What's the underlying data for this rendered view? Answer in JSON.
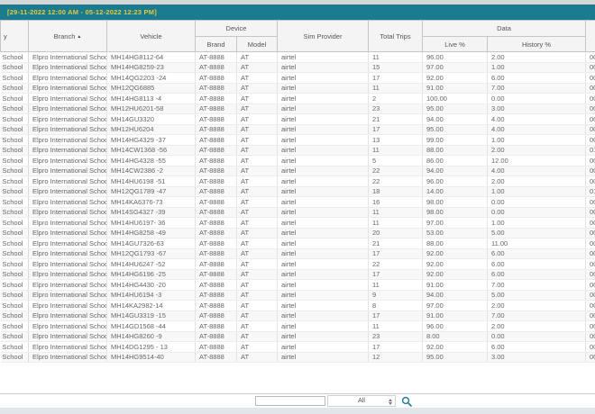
{
  "top_bar": {
    "date_range": "[29-11-2022 12:00 AM - 05-12-2022 12:23 PM]"
  },
  "colors": {
    "accent_teal": "#1b7b8e",
    "date_text": "#e5c83e"
  },
  "table": {
    "group_headers": {
      "device": "Device",
      "data": "Data"
    },
    "headers": {
      "left_cut": "y",
      "branch": "Branch",
      "vehicle": "Vehicle",
      "brand": "Brand",
      "model": "Model",
      "sim": "Sim Provider",
      "trips": "Total Trips",
      "live": "Live %",
      "history": "History %",
      "right_cut": ""
    },
    "sort_icon": "▲",
    "row_fields": [
      "left",
      "branch",
      "vehicle",
      "brand",
      "model",
      "sim",
      "trips",
      "live",
      "history",
      "right"
    ],
    "rows": [
      {
        "left": "School",
        "branch": "Elpro International School",
        "vehicle": "MH14HG8112-64",
        "brand": "AT-8888",
        "model": "AT",
        "sim": "airtel",
        "trips": "11",
        "live": "96.00",
        "history": "2.00",
        "right": "00:"
      },
      {
        "left": "School",
        "branch": "Elpro International School",
        "vehicle": "MH14HG8259-23",
        "brand": "AT-8888",
        "model": "AT",
        "sim": "airtel",
        "trips": "15",
        "live": "97.00",
        "history": "1.00",
        "right": "00:"
      },
      {
        "left": "School",
        "branch": "Elpro International School",
        "vehicle": "MH14QG2203 -24",
        "brand": "AT-8888",
        "model": "AT",
        "sim": "airtel",
        "trips": "17",
        "live": "92.00",
        "history": "6.00",
        "right": "00:"
      },
      {
        "left": "School",
        "branch": "Elpro International School",
        "vehicle": "MH12QG6885",
        "brand": "AT-8888",
        "model": "AT",
        "sim": "airtel",
        "trips": "11",
        "live": "91.00",
        "history": "7.00",
        "right": "00:"
      },
      {
        "left": "School",
        "branch": "Elpro International School",
        "vehicle": "MH14HG8113 -4",
        "brand": "AT-8888",
        "model": "AT",
        "sim": "airtel",
        "trips": "2",
        "live": "100.00",
        "history": "0.00",
        "right": "00:"
      },
      {
        "left": "School",
        "branch": "Elpro International School",
        "vehicle": "MH12HU6201-58",
        "brand": "AT-8888",
        "model": "AT",
        "sim": "airtel",
        "trips": "23",
        "live": "95.00",
        "history": "3.00",
        "right": "00:"
      },
      {
        "left": "School",
        "branch": "Elpro International School",
        "vehicle": "MH14GU3320",
        "brand": "AT-8888",
        "model": "AT",
        "sim": "airtel",
        "trips": "21",
        "live": "94.00",
        "history": "4.00",
        "right": "00:"
      },
      {
        "left": "School",
        "branch": "Elpro International School",
        "vehicle": "MH12HU6204",
        "brand": "AT-8888",
        "model": "AT",
        "sim": "airtel",
        "trips": "17",
        "live": "95.00",
        "history": "4.00",
        "right": "00:"
      },
      {
        "left": "School",
        "branch": "Elpro International School",
        "vehicle": "MH14HG4329 -37",
        "brand": "AT-8888",
        "model": "AT",
        "sim": "airtel",
        "trips": "13",
        "live": "99.00",
        "history": "1.00",
        "right": "00:"
      },
      {
        "left": "School",
        "branch": "Elpro International School",
        "vehicle": "MH14CW1368 -56",
        "brand": "AT-8888",
        "model": "AT",
        "sim": "airtel",
        "trips": "11",
        "live": "88.00",
        "history": "2.00",
        "right": "01:"
      },
      {
        "left": "School",
        "branch": "Elpro International School",
        "vehicle": "MH14HG4328 -55",
        "brand": "AT-8888",
        "model": "AT",
        "sim": "airtel",
        "trips": "5",
        "live": "86.00",
        "history": "12.00",
        "right": "00:"
      },
      {
        "left": "School",
        "branch": "Elpro International School",
        "vehicle": "MH14CW2386 -2",
        "brand": "AT-8888",
        "model": "AT",
        "sim": "airtel",
        "trips": "22",
        "live": "94.00",
        "history": "4.00",
        "right": "00:"
      },
      {
        "left": "School",
        "branch": "Elpro International School",
        "vehicle": "MH14HU6198 -51",
        "brand": "AT-8888",
        "model": "AT",
        "sim": "airtel",
        "trips": "22",
        "live": "96.00",
        "history": "2.00",
        "right": "00:"
      },
      {
        "left": "School",
        "branch": "Elpro International School",
        "vehicle": "MH12QG1789 -47",
        "brand": "AT-8888",
        "model": "AT",
        "sim": "airtel",
        "trips": "18",
        "live": "14.00",
        "history": "1.00",
        "right": "01:"
      },
      {
        "left": "School",
        "branch": "Elpro International School",
        "vehicle": "MH14KA6376-73",
        "brand": "AT-8888",
        "model": "AT",
        "sim": "airtel",
        "trips": "16",
        "live": "98.00",
        "history": "0.00",
        "right": "00:"
      },
      {
        "left": "School",
        "branch": "Elpro International School",
        "vehicle": "MH14SG4327 -39",
        "brand": "AT-8888",
        "model": "AT",
        "sim": "airtel",
        "trips": "11",
        "live": "98.00",
        "history": "0.00",
        "right": "00:"
      },
      {
        "left": "School",
        "branch": "Elpro International School",
        "vehicle": "MH14HU6197- 36",
        "brand": "AT-8888",
        "model": "AT",
        "sim": "airtel",
        "trips": "11",
        "live": "97.00",
        "history": "1.00",
        "right": "00:"
      },
      {
        "left": "School",
        "branch": "Elpro International School",
        "vehicle": "MH14HG8258 -49",
        "brand": "AT-8888",
        "model": "AT",
        "sim": "airtel",
        "trips": "20",
        "live": "53.00",
        "history": "5.00",
        "right": "00:"
      },
      {
        "left": "School",
        "branch": "Elpro International School",
        "vehicle": "MH14GU7326-63",
        "brand": "AT-8888",
        "model": "AT",
        "sim": "airtel",
        "trips": "21",
        "live": "88.00",
        "history": "11.00",
        "right": "00:"
      },
      {
        "left": "School",
        "branch": "Elpro International School",
        "vehicle": "MH12QG1793 -67",
        "brand": "AT-8888",
        "model": "AT",
        "sim": "airtel",
        "trips": "17",
        "live": "92.00",
        "history": "6.00",
        "right": "00:"
      },
      {
        "left": "School",
        "branch": "Elpro International School",
        "vehicle": "MH14HU6247 -52",
        "brand": "AT-8888",
        "model": "AT",
        "sim": "airtel",
        "trips": "22",
        "live": "92.00",
        "history": "6.00",
        "right": "00:"
      },
      {
        "left": "School",
        "branch": "Elpro International School",
        "vehicle": "MH14HG6196 -25",
        "brand": "AT-8888",
        "model": "AT",
        "sim": "airtel",
        "trips": "17",
        "live": "92.00",
        "history": "6.00",
        "right": "00:"
      },
      {
        "left": "School",
        "branch": "Elpro International School",
        "vehicle": "MH14HG4430 -20",
        "brand": "AT-8888",
        "model": "AT",
        "sim": "airtel",
        "trips": "11",
        "live": "91.00",
        "history": "7.00",
        "right": "00:"
      },
      {
        "left": "School",
        "branch": "Elpro International School",
        "vehicle": "MH14HU6194 -3",
        "brand": "AT-8888",
        "model": "AT",
        "sim": "airtel",
        "trips": "9",
        "live": "94.00",
        "history": "5.00",
        "right": "00:"
      },
      {
        "left": "School",
        "branch": "Elpro International School",
        "vehicle": "MH14KA2982-14",
        "brand": "AT-8888",
        "model": "AT",
        "sim": "airtel",
        "trips": "8",
        "live": "97.00",
        "history": "2.00",
        "right": "00:"
      },
      {
        "left": "School",
        "branch": "Elpro International School",
        "vehicle": "MH14GU3319 -15",
        "brand": "AT-8888",
        "model": "AT",
        "sim": "airtel",
        "trips": "17",
        "live": "91.00",
        "history": "7.00",
        "right": "00:"
      },
      {
        "left": "School",
        "branch": "Elpro International School",
        "vehicle": "MH14GD1568 -44",
        "brand": "AT-8888",
        "model": "AT",
        "sim": "airtel",
        "trips": "11",
        "live": "96.00",
        "history": "2.00",
        "right": "00:"
      },
      {
        "left": "School",
        "branch": "Elpro International School",
        "vehicle": "MH14HG8260 -9",
        "brand": "AT-8888",
        "model": "AT",
        "sim": "airtel",
        "trips": "23",
        "live": "8.00",
        "history": "0.00",
        "right": "00:"
      },
      {
        "left": "School",
        "branch": "Elpro International School",
        "vehicle": "MH14DG1295 - 13",
        "brand": "AT-8888",
        "model": "AT",
        "sim": "airtel",
        "trips": "17",
        "live": "92.00",
        "history": "6.00",
        "right": "00:"
      },
      {
        "left": "School",
        "branch": "Elpro International School",
        "vehicle": "MH14HG9514-40",
        "brand": "AT-8888",
        "model": "AT",
        "sim": "airtel",
        "trips": "12",
        "live": "95.00",
        "history": "3.00",
        "right": "00:"
      }
    ]
  },
  "footer": {
    "filter_value": "",
    "page_size_value": "All"
  }
}
